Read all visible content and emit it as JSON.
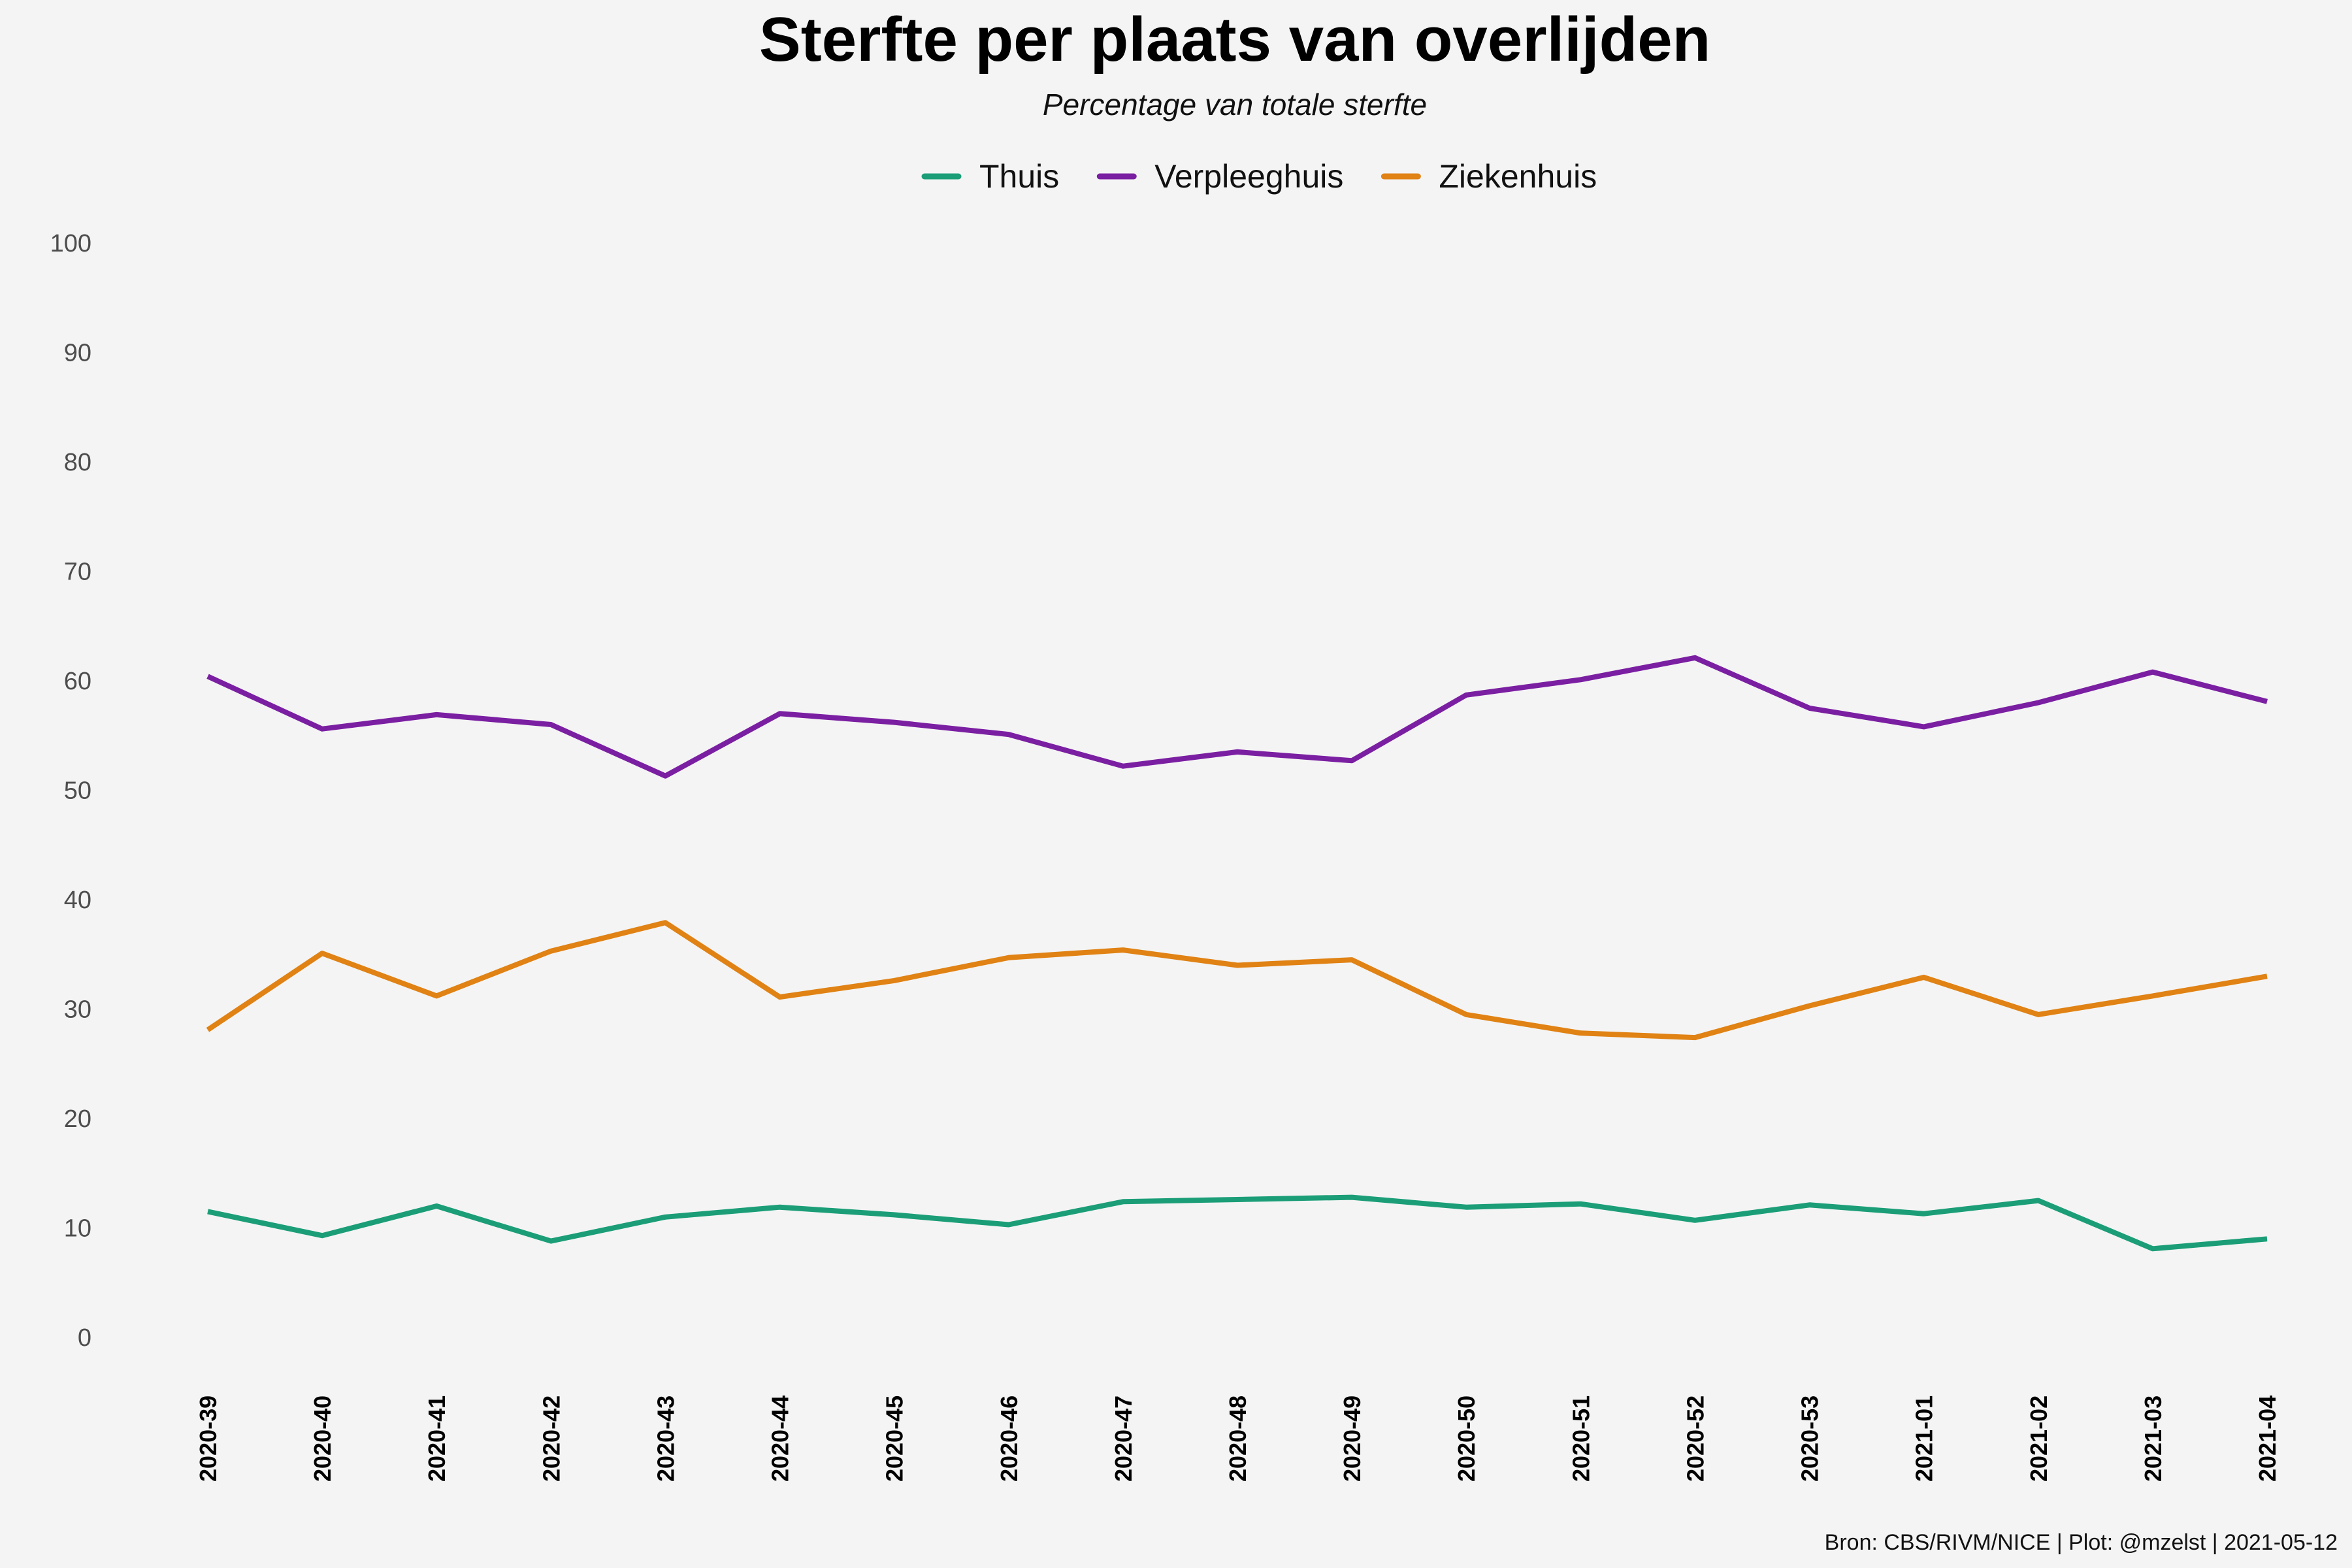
{
  "chart_data": {
    "type": "line",
    "title": "Sterfte per plaats van overlijden",
    "subtitle": "Percentage van totale sterfte",
    "caption": "Bron: CBS/RIVM/NICE | Plot: @mzelst  |  2021-05-12",
    "xlabel": "",
    "ylabel": "",
    "ylim": [
      0,
      100
    ],
    "yticks": [
      0,
      10,
      20,
      30,
      40,
      50,
      60,
      70,
      80,
      90,
      100
    ],
    "grid": false,
    "legend_position": "top",
    "categories": [
      "2020-39",
      "2020-40",
      "2020-41",
      "2020-42",
      "2020-43",
      "2020-44",
      "2020-45",
      "2020-46",
      "2020-47",
      "2020-48",
      "2020-49",
      "2020-50",
      "2020-51",
      "2020-52",
      "2020-53",
      "2021-01",
      "2021-02",
      "2021-03",
      "2021-04"
    ],
    "series": [
      {
        "name": "Thuis",
        "color": "#1b9e77",
        "values": [
          11.5,
          9.3,
          12.0,
          8.8,
          11.0,
          11.9,
          11.2,
          10.3,
          12.4,
          12.6,
          12.8,
          11.9,
          12.2,
          10.7,
          12.1,
          11.3,
          12.5,
          8.1,
          9.0
        ]
      },
      {
        "name": "Verpleeghuis",
        "color": "#7b1fa2",
        "values": [
          60.4,
          55.6,
          56.9,
          56.0,
          51.3,
          57.0,
          56.2,
          55.1,
          52.2,
          53.5,
          52.7,
          58.7,
          60.1,
          62.1,
          57.5,
          55.8,
          58.0,
          60.8,
          58.1
        ]
      },
      {
        "name": "Ziekenhuis",
        "color": "#e08214",
        "values": [
          28.1,
          35.1,
          31.2,
          35.3,
          37.9,
          31.1,
          32.6,
          34.7,
          35.4,
          34.0,
          34.5,
          29.5,
          27.8,
          27.4,
          30.3,
          32.9,
          29.5,
          31.2,
          33.0
        ]
      }
    ]
  }
}
